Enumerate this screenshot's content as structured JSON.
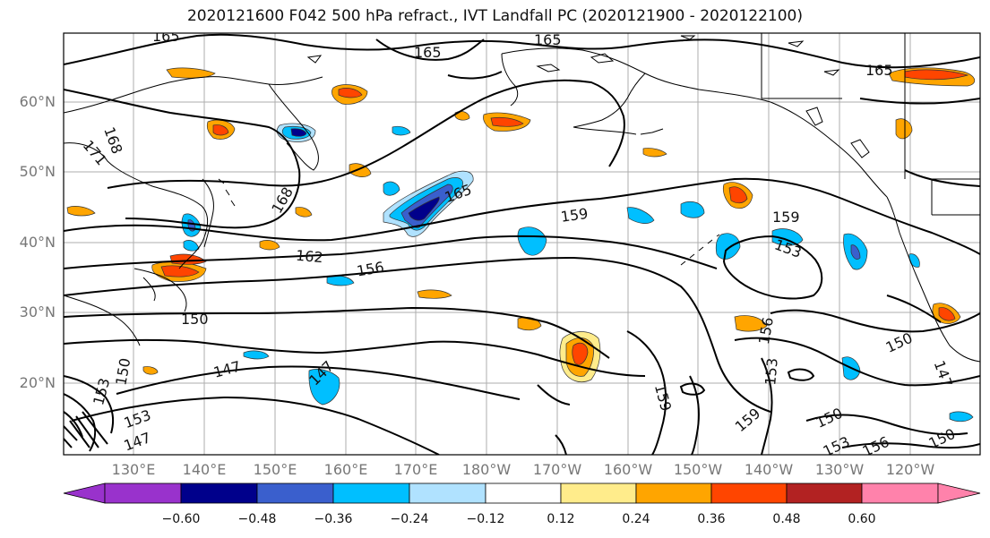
{
  "title": "2020121600 F042 500 hPa refract., IVT Landfall PC (2020121900 - 2020122100)",
  "lat_labels": [
    "60°N",
    "50°N",
    "40°N",
    "30°N",
    "20°N"
  ],
  "lon_labels": [
    "130°E",
    "140°E",
    "150°E",
    "160°E",
    "170°E",
    "180°W",
    "170°W",
    "160°W",
    "150°W",
    "140°W",
    "130°W",
    "120°W"
  ],
  "contour_labels": [
    "165",
    "165",
    "165",
    "165",
    "168",
    "168",
    "171",
    "165",
    "159",
    "159",
    "162",
    "156",
    "153",
    "150",
    "150",
    "147",
    "147",
    "153",
    "150",
    "153",
    "156",
    "159",
    "153",
    "150",
    "153",
    "156",
    "150",
    "147",
    "147",
    "159"
  ],
  "colorbar": {
    "ticks": [
      "−0.60",
      "−0.48",
      "−0.36",
      "−0.24",
      "−0.12",
      "0.12",
      "0.24",
      "0.36",
      "0.48",
      "0.60"
    ],
    "colors": [
      "#9932cc",
      "#00008b",
      "#3a5fcd",
      "#00bfff",
      "#b0e2ff",
      "#ffffff",
      "#ffec8b",
      "#ffa500",
      "#ff4500",
      "#b22222",
      "#ff82ab"
    ]
  }
}
